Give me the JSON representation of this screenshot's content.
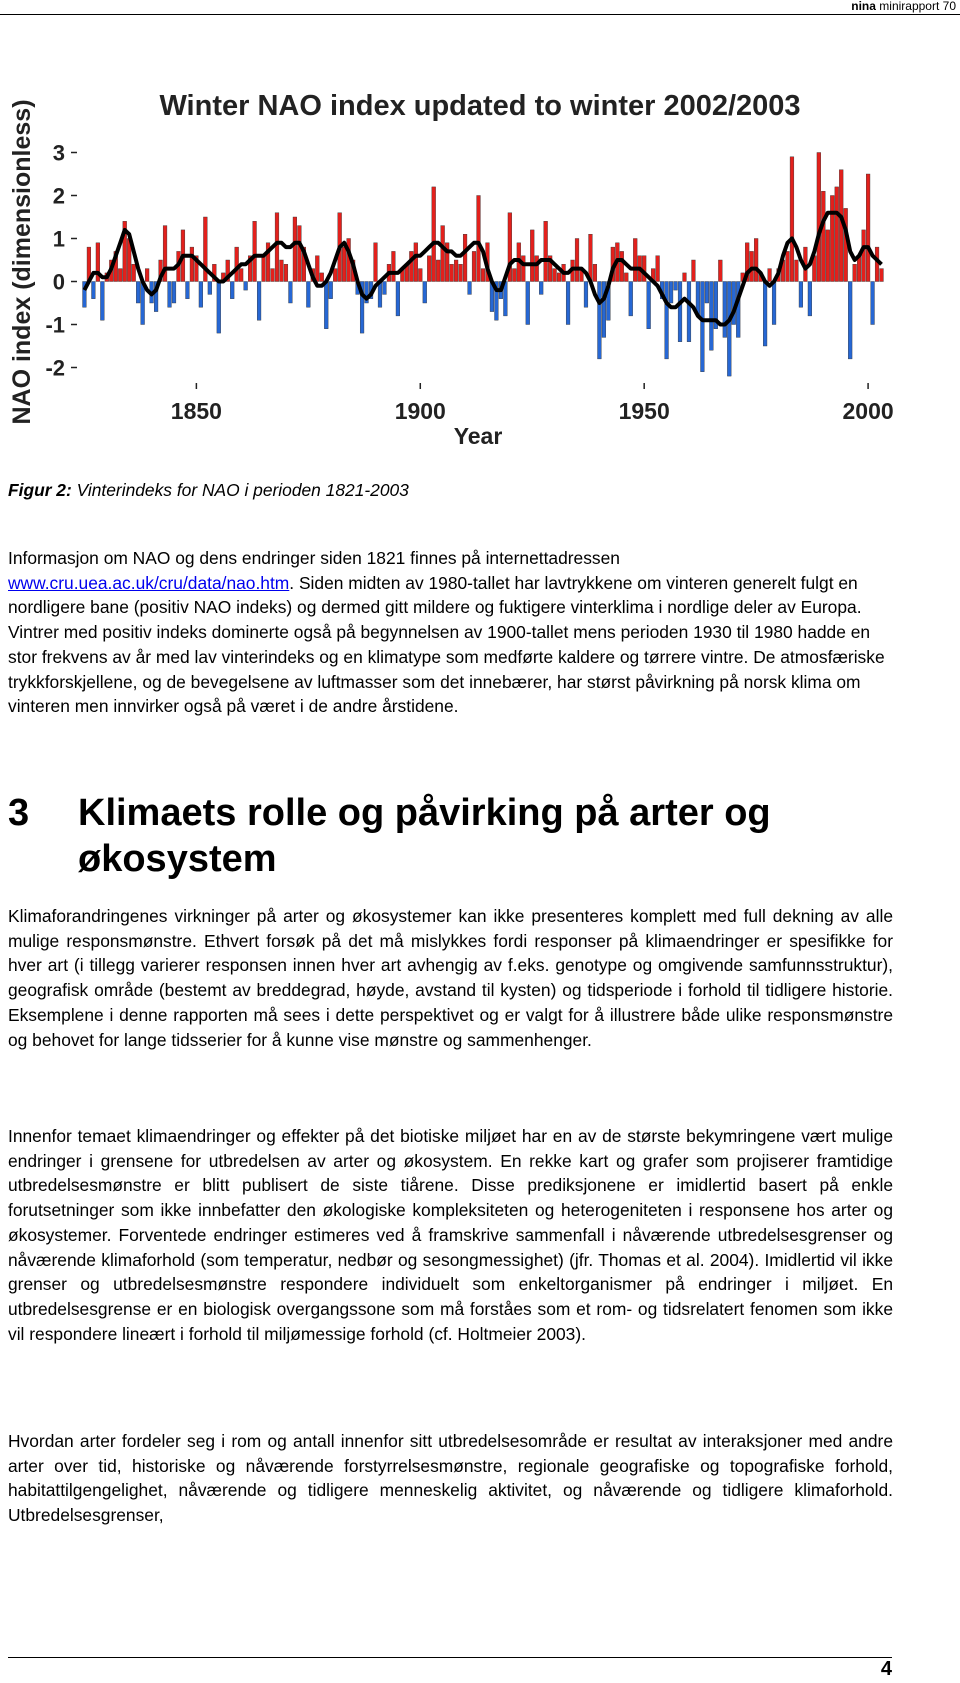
{
  "header": {
    "org": "nina",
    "report": "minirapport 70"
  },
  "chart_data": {
    "type": "bar",
    "title": "Winter NAO index updated to winter 2002/2003",
    "y_label": "NAO index (dimensionless)",
    "x_label": "Year",
    "xlim": [
      1822,
      2004
    ],
    "xticks": [
      1850,
      1900,
      1950,
      2000
    ],
    "ylim": [
      -2.5,
      3.5
    ],
    "yticks": [
      -2,
      -1,
      0,
      1,
      2,
      3
    ],
    "positive_color": "#e3201c",
    "negative_color": "#2667d4",
    "x": [
      1825,
      1826,
      1827,
      1828,
      1829,
      1830,
      1831,
      1832,
      1833,
      1834,
      1835,
      1836,
      1837,
      1838,
      1839,
      1840,
      1841,
      1842,
      1843,
      1844,
      1845,
      1846,
      1847,
      1848,
      1849,
      1850,
      1851,
      1852,
      1853,
      1854,
      1855,
      1856,
      1857,
      1858,
      1859,
      1860,
      1861,
      1862,
      1863,
      1864,
      1865,
      1866,
      1867,
      1868,
      1869,
      1870,
      1871,
      1872,
      1873,
      1874,
      1875,
      1876,
      1877,
      1878,
      1879,
      1880,
      1881,
      1882,
      1883,
      1884,
      1885,
      1886,
      1887,
      1888,
      1889,
      1890,
      1891,
      1892,
      1893,
      1894,
      1895,
      1896,
      1897,
      1898,
      1899,
      1900,
      1901,
      1902,
      1903,
      1904,
      1905,
      1906,
      1907,
      1908,
      1909,
      1910,
      1911,
      1912,
      1913,
      1914,
      1915,
      1916,
      1917,
      1918,
      1919,
      1920,
      1921,
      1922,
      1923,
      1924,
      1925,
      1926,
      1927,
      1928,
      1929,
      1930,
      1931,
      1932,
      1933,
      1934,
      1935,
      1936,
      1937,
      1938,
      1939,
      1940,
      1941,
      1942,
      1943,
      1944,
      1945,
      1946,
      1947,
      1948,
      1949,
      1950,
      1951,
      1952,
      1953,
      1954,
      1955,
      1956,
      1957,
      1958,
      1959,
      1960,
      1961,
      1962,
      1963,
      1964,
      1965,
      1966,
      1967,
      1968,
      1969,
      1970,
      1971,
      1972,
      1973,
      1974,
      1975,
      1976,
      1977,
      1978,
      1979,
      1980,
      1981,
      1982,
      1983,
      1984,
      1985,
      1986,
      1987,
      1988,
      1989,
      1990,
      1991,
      1992,
      1993,
      1994,
      1995,
      1996,
      1997,
      1998,
      1999,
      2000,
      2001,
      2002,
      2003
    ],
    "series": [
      {
        "kind": "bar",
        "values": [
          -0.6,
          0.8,
          -0.4,
          0.9,
          -0.9,
          0.2,
          0.5,
          0.7,
          0.3,
          1.4,
          1.0,
          0.4,
          -0.5,
          -1.0,
          0.3,
          -0.5,
          -0.7,
          0.5,
          1.3,
          -0.6,
          -0.5,
          0.7,
          1.2,
          -0.4,
          0.8,
          0.6,
          -0.6,
          1.5,
          -0.3,
          0.4,
          -1.2,
          0.2,
          0.5,
          -0.4,
          0.8,
          0.3,
          -0.2,
          0.6,
          1.4,
          -0.9,
          0.6,
          0.9,
          0.3,
          1.6,
          0.5,
          0.4,
          -0.5,
          1.5,
          1.3,
          0.8,
          -0.6,
          0.3,
          0.6,
          0.2,
          -1.1,
          -0.4,
          0.3,
          1.6,
          0.8,
          1.0,
          0.5,
          -0.3,
          -1.2,
          -0.5,
          -0.4,
          0.9,
          -0.6,
          -0.3,
          0.4,
          0.7,
          -0.8,
          0.3,
          0.4,
          0.7,
          0.9,
          0.3,
          -0.5,
          0.6,
          2.2,
          0.5,
          1.3,
          0.9,
          0.4,
          0.5,
          0.4,
          1.1,
          -0.3,
          0.7,
          2.0,
          0.3,
          0.9,
          -0.7,
          -0.9,
          -0.4,
          -0.8,
          1.6,
          0.3,
          0.9,
          0.6,
          -1.0,
          1.2,
          0.6,
          -0.3,
          1.4,
          0.6,
          0.3,
          0.2,
          0.4,
          -1.0,
          0.5,
          1.0,
          0.3,
          -0.6,
          1.1,
          0.4,
          -1.8,
          -1.3,
          -0.9,
          0.8,
          0.9,
          0.7,
          0.2,
          -0.8,
          1.0,
          0.6,
          0.6,
          -1.1,
          0.3,
          0.6,
          -0.4,
          -1.8,
          -0.5,
          -0.2,
          -1.4,
          0.2,
          -1.4,
          0.5,
          -0.8,
          -2.1,
          -0.5,
          -1.6,
          -1.1,
          0.5,
          -1.3,
          -2.2,
          -1.0,
          -1.3,
          0.2,
          0.9,
          0.7,
          1.0,
          0.2,
          -1.5,
          0.3,
          -1.0,
          0.3,
          0.5,
          0.7,
          2.9,
          0.5,
          -0.6,
          0.8,
          -0.8,
          0.6,
          3.0,
          2.1,
          1.2,
          2.0,
          2.2,
          2.6,
          1.7,
          -1.8,
          0.4,
          0.6,
          1.2,
          2.5,
          -1.0,
          0.8,
          0.3
        ]
      },
      {
        "kind": "line",
        "color": "#000000",
        "values": [
          -0.2,
          0.0,
          0.2,
          0.2,
          0.1,
          0.1,
          0.3,
          0.6,
          0.9,
          1.2,
          1.1,
          0.7,
          0.3,
          0.0,
          -0.2,
          -0.3,
          -0.2,
          0.1,
          0.3,
          0.3,
          0.3,
          0.4,
          0.6,
          0.6,
          0.6,
          0.5,
          0.4,
          0.3,
          0.2,
          0.1,
          0.0,
          0.0,
          0.1,
          0.2,
          0.3,
          0.4,
          0.4,
          0.5,
          0.6,
          0.6,
          0.6,
          0.7,
          0.8,
          0.9,
          0.9,
          0.8,
          0.8,
          0.9,
          0.9,
          0.7,
          0.4,
          0.1,
          -0.1,
          -0.1,
          0.0,
          0.2,
          0.5,
          0.8,
          0.9,
          0.7,
          0.4,
          0.0,
          -0.3,
          -0.4,
          -0.3,
          -0.1,
          0.0,
          0.1,
          0.2,
          0.2,
          0.2,
          0.3,
          0.4,
          0.5,
          0.6,
          0.6,
          0.7,
          0.8,
          0.9,
          0.9,
          0.8,
          0.7,
          0.7,
          0.6,
          0.6,
          0.7,
          0.8,
          0.9,
          0.9,
          0.7,
          0.3,
          0.0,
          -0.2,
          -0.2,
          0.1,
          0.4,
          0.5,
          0.5,
          0.4,
          0.4,
          0.4,
          0.4,
          0.5,
          0.5,
          0.5,
          0.4,
          0.3,
          0.2,
          0.2,
          0.3,
          0.3,
          0.3,
          0.2,
          0.0,
          -0.3,
          -0.5,
          -0.4,
          -0.1,
          0.3,
          0.5,
          0.5,
          0.4,
          0.3,
          0.3,
          0.3,
          0.2,
          0.1,
          0.0,
          -0.1,
          -0.3,
          -0.5,
          -0.6,
          -0.6,
          -0.5,
          -0.4,
          -0.5,
          -0.6,
          -0.8,
          -0.9,
          -0.9,
          -0.9,
          -0.9,
          -1.0,
          -1.0,
          -0.9,
          -0.7,
          -0.4,
          -0.1,
          0.2,
          0.3,
          0.3,
          0.2,
          0.0,
          -0.1,
          0.0,
          0.2,
          0.6,
          0.9,
          1.0,
          0.8,
          0.5,
          0.3,
          0.4,
          0.7,
          1.1,
          1.4,
          1.6,
          1.6,
          1.6,
          1.5,
          1.2,
          0.7,
          0.5,
          0.6,
          0.8,
          0.8,
          0.6,
          0.5,
          0.4
        ]
      }
    ]
  },
  "figure_caption": {
    "label": "Figur 2:",
    "text": "Vinterindeks for NAO i perioden 1821-2003"
  },
  "paragraph_1": {
    "before": "Informasjon om NAO og dens endringer siden 1821 finnes på internettadressen",
    "link": "www.cru.uea.ac.uk/cru/data/nao.htm",
    "after": ". Siden midten av 1980-tallet har lavtrykkene om vinteren generelt fulgt en nordligere bane (positiv NAO indeks) og dermed gitt mildere og fuktigere vinterklima i nordlige deler av Europa. Vintrer med positiv indeks dominerte også på begynnelsen av 1900-tallet mens perioden 1930 til 1980 hadde en stor frekvens av år med lav vinterindeks og en klimatype som medførte kaldere og tørrere vintre. De atmosfæriske trykkforskjellene, og de bevegelsene av luftmasser som det innebærer, har størst påvirkning på norsk klima om vinteren men innvirker også på været i de andre årstidene."
  },
  "section": {
    "number": "3",
    "title": "Klimaets rolle og påvirking på arter og økosystem"
  },
  "paragraphs": [
    "Klimaforandringenes virkninger på arter og økosystemer kan ikke presenteres komplett med full dekning av alle mulige responsmønstre. Ethvert forsøk på det må mislykkes fordi responser på klimaendringer er spesifikke for hver art (i tillegg varierer responsen innen hver art avhengig av f.eks. genotype og omgivende samfunnsstruktur), geografisk område (bestemt av breddegrad, høyde, avstand til kysten) og tidsperiode i forhold til tidligere historie. Eksemplene i denne rapporten må sees i dette perspektivet og er valgt for å illustrere både ulike responsmønstre og behovet for lange tidsserier for å kunne vise mønstre og sammenhenger.",
    "Innenfor temaet klimaendringer og effekter på det biotiske miljøet har en av de største bekymringene vært mulige endringer i grensene for utbredelsen av arter og økosystem. En rekke kart og grafer som projiserer framtidige utbredelsesmønstre er blitt publisert de siste tiårene. Disse prediksjonene er imidlertid basert på enkle forutsetninger som ikke innbefatter den økologiske kompleksiteten og heterogeniteten i responsene hos arter og økosystemer. Forventede endringer estimeres ved å framskrive sammenfall i nåværende utbredelsesgrenser og nåværende klimaforhold (som temperatur, nedbør og sesongmessighet) (jfr. Thomas et al. 2004). Imidlertid vil ikke grenser og utbredelsesmønstre respondere individuelt som enkeltorganismer på endringer i miljøet. En utbredelsesgrense er en biologisk overgangssone som må forståes som et rom- og tidsrelatert fenomen som ikke vil respondere lineært i forhold til miljømessige forhold (cf. Holtmeier 2003).",
    "Hvordan arter fordeler seg i rom og antall innenfor sitt utbredelsesområde er resultat av interaksjoner med andre arter over tid, historiske og nåværende forstyrrelsesmønstre, regionale geografiske og topografiske forhold, habitattilgengelighet, nåværende og tidligere menneskelig aktivitet, og nåværende og tidligere klimaforhold. Utbredelsesgrenser,"
  ],
  "page_number": "4"
}
